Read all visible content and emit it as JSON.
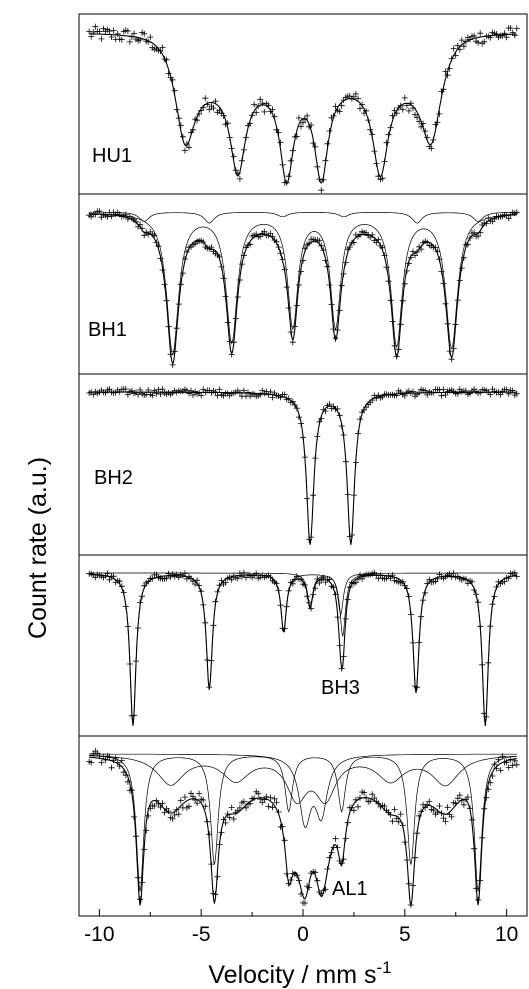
{
  "chart_data": {
    "type": "scatter",
    "title": "",
    "xlabel": "Velocity / mm s",
    "xlabel_superscript": "-1",
    "ylabel": "Count rate (a.u.)",
    "xlim": [
      -11,
      11
    ],
    "xticks": [
      -10,
      -5,
      0,
      5,
      10
    ],
    "xtick_labels": [
      "-10",
      "-5",
      "0",
      "5",
      "10"
    ],
    "y_tick_labels_shown": false,
    "layout": "five vertically stacked panels sharing the velocity axis",
    "marker": "+",
    "fit_line": "thin solid black",
    "grid": false,
    "panels": [
      {
        "label": "HU1",
        "description": "broad magnetic sextet with wide dip between -6 and 7 mm/s",
        "baseline": 1.0,
        "envelope": {
          "start": -6.2,
          "end": 6.8,
          "depth": 0.3
        },
        "components": [
          {
            "name": "sextet",
            "lines": [
              {
                "v": -5.8,
                "depth": 0.45,
                "width": 0.55
              },
              {
                "v": -3.2,
                "depth": 0.55,
                "width": 0.45
              },
              {
                "v": -0.8,
                "depth": 0.58,
                "width": 0.4
              },
              {
                "v": 0.9,
                "depth": 0.58,
                "width": 0.4
              },
              {
                "v": 3.8,
                "depth": 0.56,
                "width": 0.45
              },
              {
                "v": 6.3,
                "depth": 0.43,
                "width": 0.55
              }
            ]
          }
        ]
      },
      {
        "label": "BH1",
        "description": "magnetic sextet with small additional sextet component",
        "baseline": 1.0,
        "envelope": {
          "start": -7.2,
          "end": 8.0,
          "depth": 0.06
        },
        "components": [
          {
            "name": "main sextet",
            "lines": [
              {
                "v": -6.4,
                "depth": 0.9,
                "width": 0.35
              },
              {
                "v": -3.5,
                "depth": 0.82,
                "width": 0.33
              },
              {
                "v": -0.5,
                "depth": 0.72,
                "width": 0.3
              },
              {
                "v": 1.6,
                "depth": 0.72,
                "width": 0.3
              },
              {
                "v": 4.6,
                "depth": 0.84,
                "width": 0.33
              },
              {
                "v": 7.3,
                "depth": 0.86,
                "width": 0.35
              }
            ]
          },
          {
            "name": "minor sextet",
            "lines": [
              {
                "v": -7.8,
                "depth": 0.06,
                "width": 0.3
              },
              {
                "v": -4.6,
                "depth": 0.07,
                "width": 0.3
              },
              {
                "v": -1.0,
                "depth": 0.03,
                "width": 0.3
              },
              {
                "v": 2.0,
                "depth": 0.03,
                "width": 0.3
              },
              {
                "v": 5.6,
                "depth": 0.07,
                "width": 0.3
              },
              {
                "v": 8.6,
                "depth": 0.06,
                "width": 0.3
              }
            ]
          }
        ]
      },
      {
        "label": "BH2",
        "description": "paramagnetic doublet",
        "baseline": 1.0,
        "envelope": null,
        "components": [
          {
            "name": "doublet",
            "lines": [
              {
                "v": 0.35,
                "depth": 0.92,
                "width": 0.22
              },
              {
                "v": 2.35,
                "depth": 0.92,
                "width": 0.22
              }
            ]
          }
        ]
      },
      {
        "label": "BH3",
        "description": "sharp sextet plus doublet",
        "baseline": 1.0,
        "envelope": null,
        "components": [
          {
            "name": "sextet",
            "lines": [
              {
                "v": -8.35,
                "depth": 0.92,
                "width": 0.18
              },
              {
                "v": -4.6,
                "depth": 0.7,
                "width": 0.18
              },
              {
                "v": -0.95,
                "depth": 0.35,
                "width": 0.16
              },
              {
                "v": 1.95,
                "depth": 0.38,
                "width": 0.16
              },
              {
                "v": 5.55,
                "depth": 0.72,
                "width": 0.18
              },
              {
                "v": 8.95,
                "depth": 0.92,
                "width": 0.18
              }
            ]
          },
          {
            "name": "doublet",
            "lines": [
              {
                "v": 0.35,
                "depth": 0.2,
                "width": 0.16
              },
              {
                "v": 1.85,
                "depth": 0.25,
                "width": 0.16
              }
            ]
          }
        ]
      },
      {
        "label": "AL1",
        "description": "multiple overlapping sextets with broad distribution",
        "baseline": 1.0,
        "envelope": {
          "start": -7.6,
          "end": 8.2,
          "depth": 0.15
        },
        "components": [
          {
            "name": "sextet A",
            "lines": [
              {
                "v": -8.0,
                "depth": 0.85,
                "width": 0.22
              },
              {
                "v": -4.35,
                "depth": 0.68,
                "width": 0.22
              },
              {
                "v": -0.7,
                "depth": 0.35,
                "width": 0.22
              },
              {
                "v": 1.9,
                "depth": 0.35,
                "width": 0.22
              },
              {
                "v": 5.3,
                "depth": 0.68,
                "width": 0.22
              },
              {
                "v": 8.6,
                "depth": 0.85,
                "width": 0.22
              }
            ]
          },
          {
            "name": "sextet B",
            "lines": [
              {
                "v": -6.5,
                "depth": 0.18,
                "width": 0.8
              },
              {
                "v": -3.3,
                "depth": 0.15,
                "width": 0.8
              },
              {
                "v": -0.3,
                "depth": 0.25,
                "width": 0.6
              },
              {
                "v": 1.1,
                "depth": 0.25,
                "width": 0.6
              },
              {
                "v": 4.3,
                "depth": 0.15,
                "width": 0.8
              },
              {
                "v": 7.0,
                "depth": 0.18,
                "width": 0.8
              }
            ]
          },
          {
            "name": "central doublet",
            "lines": [
              {
                "v": 0.1,
                "depth": 0.4,
                "width": 0.35
              },
              {
                "v": 0.9,
                "depth": 0.35,
                "width": 0.35
              }
            ]
          }
        ]
      }
    ]
  }
}
